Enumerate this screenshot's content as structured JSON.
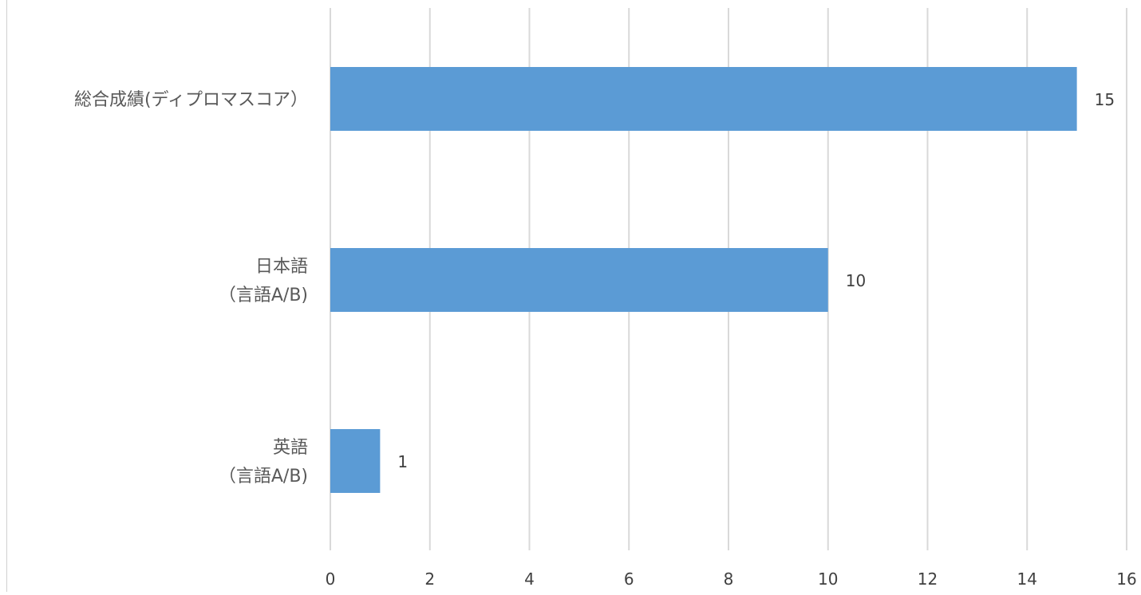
{
  "chart_data": {
    "type": "bar",
    "orientation": "horizontal",
    "categories": [
      [
        "総合成績(ディプロマスコア）"
      ],
      [
        "日本語",
        "（言語A/B)"
      ],
      [
        "英語",
        "（言語A/B)"
      ]
    ],
    "values": [
      15,
      10,
      1
    ],
    "data_labels": [
      "15",
      "10",
      "1"
    ],
    "xlim": [
      0,
      16
    ],
    "x_ticks": [
      0,
      2,
      4,
      6,
      8,
      10,
      12,
      14,
      16
    ],
    "x_tick_labels": [
      "0",
      "2",
      "4",
      "6",
      "8",
      "10",
      "12",
      "14",
      "16"
    ],
    "title": "",
    "xlabel": "",
    "ylabel": "",
    "grid": "vertical",
    "legend": "none",
    "colors": {
      "bar": "#5b9bd5",
      "grid": "#d9d9d9",
      "text": "#404040",
      "category_text": "#595959"
    }
  }
}
